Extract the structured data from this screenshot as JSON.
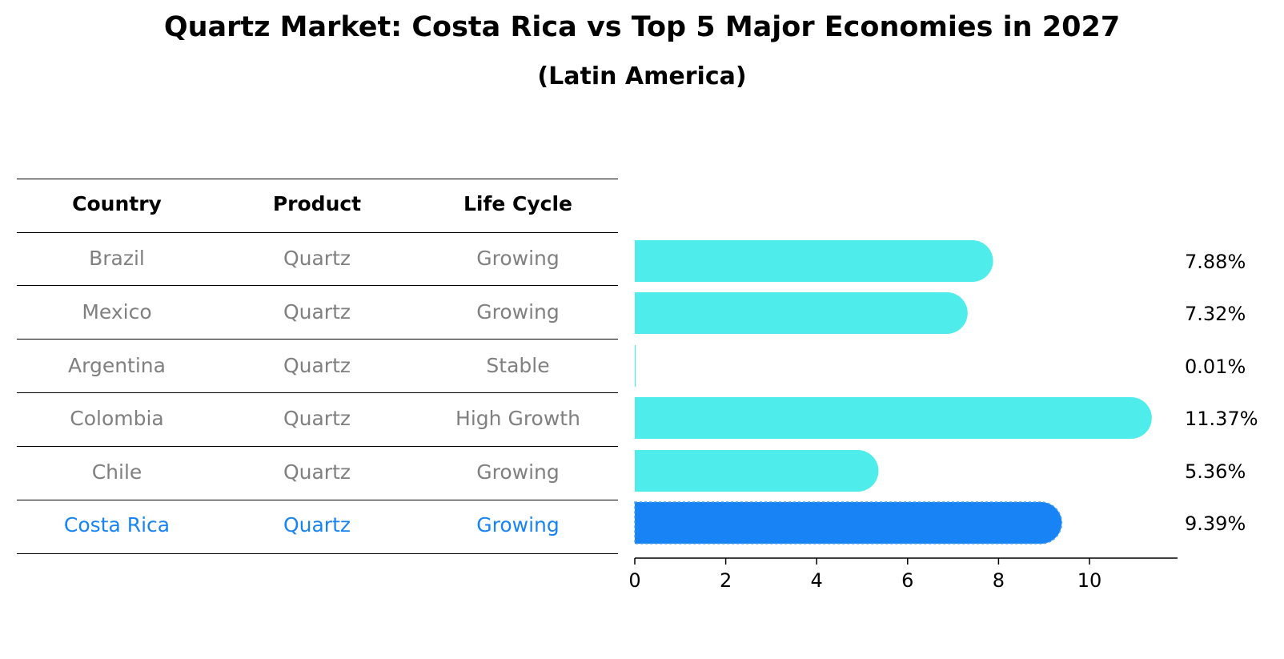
{
  "title": "Quartz Market: Costa Rica vs Top 5 Major Economies in 2027",
  "subtitle": "(Latin America)",
  "table": {
    "headers": [
      "Country",
      "Product",
      "Life Cycle"
    ],
    "rows": [
      {
        "country": "Brazil",
        "product": "Quartz",
        "life_cycle": "Growing",
        "highlight": false
      },
      {
        "country": "Mexico",
        "product": "Quartz",
        "life_cycle": "Growing",
        "highlight": false
      },
      {
        "country": "Argentina",
        "product": "Quartz",
        "life_cycle": "Stable",
        "highlight": false
      },
      {
        "country": "Colombia",
        "product": "Quartz",
        "life_cycle": "High Growth",
        "highlight": false
      },
      {
        "country": "Chile",
        "product": "Quartz",
        "life_cycle": "Growing",
        "highlight": false
      },
      {
        "country": "Costa Rica",
        "product": "Quartz",
        "life_cycle": "Growing",
        "highlight": true
      }
    ]
  },
  "colors": {
    "bar": "#4EEDEB",
    "highlight": "#1783F4",
    "muted_text": "#808080",
    "text": "#000000"
  },
  "chart_data": {
    "type": "bar",
    "orientation": "horizontal",
    "categories": [
      "Brazil",
      "Mexico",
      "Argentina",
      "Colombia",
      "Chile",
      "Costa Rica"
    ],
    "values": [
      7.88,
      7.32,
      0.01,
      11.37,
      5.36,
      9.39
    ],
    "value_labels": [
      "7.88%",
      "7.32%",
      "0.01%",
      "11.37%",
      "5.36%",
      "9.39%"
    ],
    "highlight_category": "Costa Rica",
    "title": "Quartz Market: Costa Rica vs Top 5 Major Economies in 2027",
    "subtitle": "(Latin America)",
    "xlabel": "",
    "ylabel": "",
    "xlim": [
      0,
      11.94
    ],
    "xticks": [
      0,
      2,
      4,
      6,
      8,
      10
    ],
    "xtick_labels": [
      "0",
      "2",
      "4",
      "6",
      "8",
      "10"
    ],
    "grid": false,
    "legend": "none"
  }
}
